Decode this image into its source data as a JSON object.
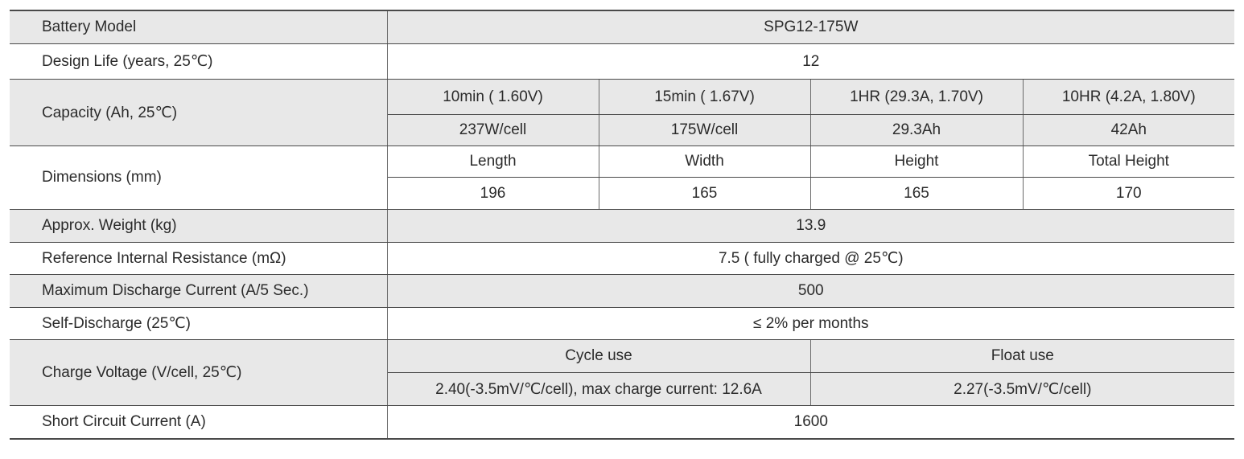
{
  "rows": {
    "model": {
      "label": "Battery Model",
      "value": "SPG12-175W"
    },
    "design_life": {
      "label": "Design Life (years, 25℃)",
      "value": "12"
    },
    "capacity": {
      "label": "Capacity (Ah, 25℃)",
      "headers": [
        "10min ( 1.60V)",
        "15min ( 1.67V)",
        "1HR (29.3A, 1.70V)",
        "10HR (4.2A, 1.80V)"
      ],
      "values": [
        "237W/cell",
        "175W/cell",
        "29.3Ah",
        "42Ah"
      ]
    },
    "dimensions": {
      "label": "Dimensions (mm)",
      "headers": [
        "Length",
        "Width",
        "Height",
        "Total Height"
      ],
      "values": [
        "196",
        "165",
        "165",
        "170"
      ]
    },
    "weight": {
      "label": "Approx. Weight (kg)",
      "value": "13.9"
    },
    "resistance": {
      "label": "Reference Internal Resistance (mΩ)",
      "value": "7.5 ( fully charged @ 25℃)"
    },
    "max_discharge": {
      "label": "Maximum Discharge Current (A/5 Sec.)",
      "value": "500"
    },
    "self_discharge": {
      "label": "Self-Discharge (25℃)",
      "value": "≤ 2% per months"
    },
    "charge_voltage": {
      "label": "Charge Voltage (V/cell, 25℃)",
      "headers": [
        "Cycle use",
        "Float use"
      ],
      "values": [
        "2.40(-3.5mV/℃/cell), max charge current: 12.6A",
        "2.27(-3.5mV/℃/cell)"
      ]
    },
    "short_circuit": {
      "label": "Short Circuit Current (A)",
      "value": "1600"
    }
  }
}
